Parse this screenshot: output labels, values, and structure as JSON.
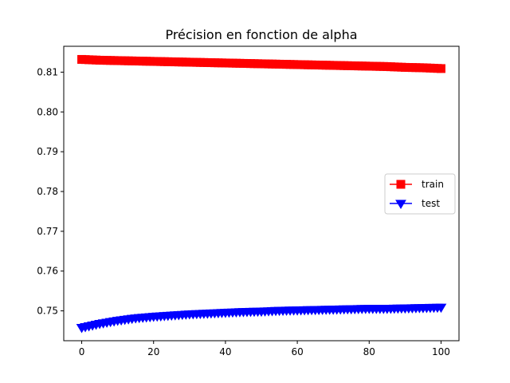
{
  "chart_data": {
    "type": "line",
    "title": "Précision en fonction de alpha",
    "xlabel": "",
    "ylabel": "",
    "xlim": [
      -5,
      105
    ],
    "ylim": [
      0.7425,
      0.8165
    ],
    "x_ticks": [
      0,
      20,
      40,
      60,
      80,
      100
    ],
    "x_tick_labels": [
      "0",
      "20",
      "40",
      "60",
      "80",
      "100"
    ],
    "y_ticks": [
      0.75,
      0.76,
      0.77,
      0.78,
      0.79,
      0.8,
      0.81
    ],
    "y_tick_labels": [
      "0.75",
      "0.76",
      "0.77",
      "0.78",
      "0.79",
      "0.80",
      "0.81"
    ],
    "grid": false,
    "legend_position": "center-right",
    "x": [
      0,
      5,
      10,
      15,
      20,
      25,
      30,
      35,
      40,
      45,
      50,
      55,
      60,
      65,
      70,
      75,
      80,
      85,
      90,
      95,
      100
    ],
    "series": [
      {
        "name": "train",
        "color": "#ff0000",
        "marker": "square",
        "values": [
          0.8132,
          0.813,
          0.8129,
          0.8128,
          0.8127,
          0.8126,
          0.8125,
          0.8124,
          0.8123,
          0.8122,
          0.8121,
          0.812,
          0.8119,
          0.8118,
          0.8117,
          0.8116,
          0.8115,
          0.8114,
          0.8112,
          0.8111,
          0.8109
        ]
      },
      {
        "name": "test",
        "color": "#0000ff",
        "marker": "triangle-down",
        "values": [
          0.7458,
          0.7468,
          0.7476,
          0.7482,
          0.7486,
          0.7489,
          0.7492,
          0.7494,
          0.7496,
          0.7498,
          0.7499,
          0.7501,
          0.7502,
          0.7503,
          0.7504,
          0.7505,
          0.7506,
          0.7506,
          0.7507,
          0.7508,
          0.7509
        ]
      }
    ]
  }
}
